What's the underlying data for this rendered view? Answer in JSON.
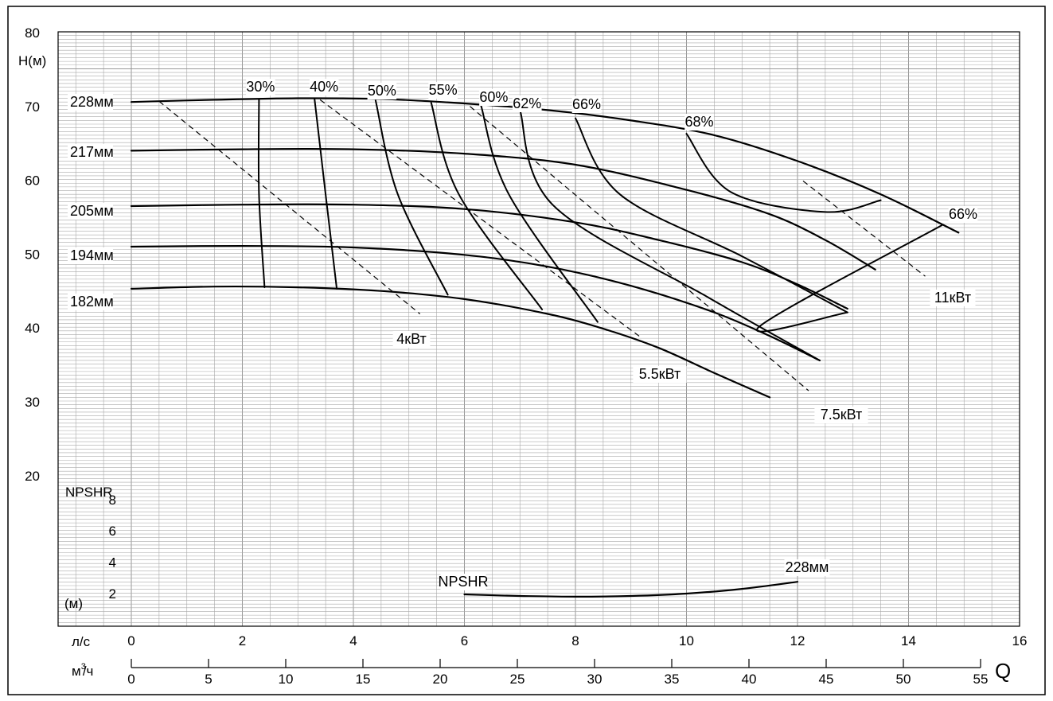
{
  "chart_data": {
    "type": "line",
    "title": "",
    "x_unit_label": "л/с",
    "x2_unit_label_base": "м",
    "x2_unit_label_sup": "3",
    "x2_unit_label_tail": "/ч",
    "x_axis_letter": "Q",
    "y_unit_label": "H(м)",
    "npsh_title": "NPSHR",
    "npsh_unit_label": "(м)",
    "xlim": [
      0,
      16
    ],
    "x2lim": [
      0,
      57.6
    ],
    "ylim": [
      12,
      80
    ],
    "x_ticks": [
      "0",
      "2",
      "4",
      "6",
      "8",
      "10",
      "12",
      "14",
      "16"
    ],
    "x2_ticks": [
      "0",
      "5",
      "10",
      "15",
      "20",
      "25",
      "30",
      "35",
      "40",
      "45",
      "50",
      "55"
    ],
    "y_ticks": [
      "20",
      "30",
      "40",
      "50",
      "60",
      "70",
      "80"
    ],
    "npsh_ticks": [
      "2",
      "4",
      "6",
      "8"
    ],
    "grid": true,
    "head_curves": [
      {
        "name": "228мм",
        "x": [
          0,
          1.5,
          3,
          4.5,
          6,
          7.5,
          9,
          10.5,
          12,
          13.5,
          14.9
        ],
        "y": [
          70.5,
          70.8,
          71.0,
          70.9,
          70.3,
          69.4,
          68.0,
          66.0,
          62.5,
          58.0,
          52.8
        ]
      },
      {
        "name": "217мм",
        "x": [
          0,
          2,
          4,
          6,
          8,
          10,
          11.5,
          12.5,
          13.4
        ],
        "y": [
          63.9,
          64.1,
          64.1,
          63.5,
          62.0,
          58.6,
          55.3,
          51.8,
          47.8
        ]
      },
      {
        "name": "205мм",
        "x": [
          0,
          2,
          4,
          6,
          8,
          9.5,
          11,
          12,
          12.9
        ],
        "y": [
          56.4,
          56.6,
          56.6,
          56.0,
          54.2,
          51.8,
          48.8,
          45.8,
          42.5
        ]
      },
      {
        "name": "194мм",
        "x": [
          0,
          2,
          4,
          6,
          7.5,
          9,
          10.5,
          11.5,
          12.4
        ],
        "y": [
          50.9,
          51.0,
          50.8,
          49.8,
          48.2,
          45.6,
          42.0,
          38.8,
          35.5
        ]
      },
      {
        "name": "182мм",
        "x": [
          0,
          1.5,
          3,
          4.5,
          6,
          7.5,
          8.5,
          9.5,
          10.5,
          11.5
        ],
        "y": [
          45.2,
          45.5,
          45.4,
          44.9,
          43.8,
          41.8,
          39.8,
          37.2,
          33.8,
          30.5
        ]
      }
    ],
    "efficiency_curves": [
      {
        "name": "30%",
        "x": [
          2.3,
          2.3,
          2.4
        ],
        "y": [
          70.9,
          58,
          45.4
        ]
      },
      {
        "name": "40%",
        "x": [
          3.3,
          3.5,
          3.7
        ],
        "y": [
          70.9,
          58,
          45.2
        ]
      },
      {
        "name": "50%",
        "x": [
          4.4,
          4.8,
          5.7
        ],
        "y": [
          70.7,
          58,
          44.4
        ]
      },
      {
        "name": "55%",
        "x": [
          5.4,
          5.9,
          7.4
        ],
        "y": [
          70.4,
          58,
          42.4
        ]
      },
      {
        "name": "60%",
        "x": [
          6.3,
          6.8,
          8.4
        ],
        "y": [
          70.0,
          58,
          40.7
        ]
      },
      {
        "name": "62%",
        "x": [
          7.0,
          7.6,
          10.4,
          12.4
        ],
        "y": [
          69.4,
          56.5,
          44,
          35.5
        ]
      },
      {
        "name": "66%",
        "x": [
          8.0,
          8.8,
          11.0,
          12.9
        ],
        "y": [
          68.3,
          58,
          49.6,
          42.0
        ],
        "left": true
      },
      {
        "name": "66%",
        "x": [
          12.9,
          11.3,
          14.6
        ],
        "y": [
          42.0,
          40.0,
          53.8
        ],
        "right": true
      },
      {
        "name": "68%",
        "x": [
          10.0,
          10.8,
          12.5,
          13.5
        ],
        "y": [
          66.2,
          58.3,
          55.6,
          57.2
        ],
        "bowl": true
      }
    ],
    "power_lines": [
      {
        "name": "4кВт",
        "x": [
          0.5,
          5.2
        ],
        "y": [
          70.6,
          41.8
        ]
      },
      {
        "name": "5.5кВт",
        "x": [
          3.4,
          9.2
        ],
        "y": [
          70.8,
          38.5
        ]
      },
      {
        "name": "7.5кВт",
        "x": [
          6.1,
          12.2
        ],
        "y": [
          69.9,
          31.4
        ]
      },
      {
        "name": "11кВт",
        "x": [
          12.1,
          14.3
        ],
        "y": [
          59.8,
          46.9
        ]
      }
    ],
    "npsh_curve": {
      "name": "228мм",
      "label_text": "NPSHR",
      "x": [
        6,
        7,
        8,
        9,
        10,
        11,
        12
      ],
      "y": [
        1.95,
        1.85,
        1.8,
        1.85,
        2.0,
        2.3,
        2.75
      ]
    }
  }
}
